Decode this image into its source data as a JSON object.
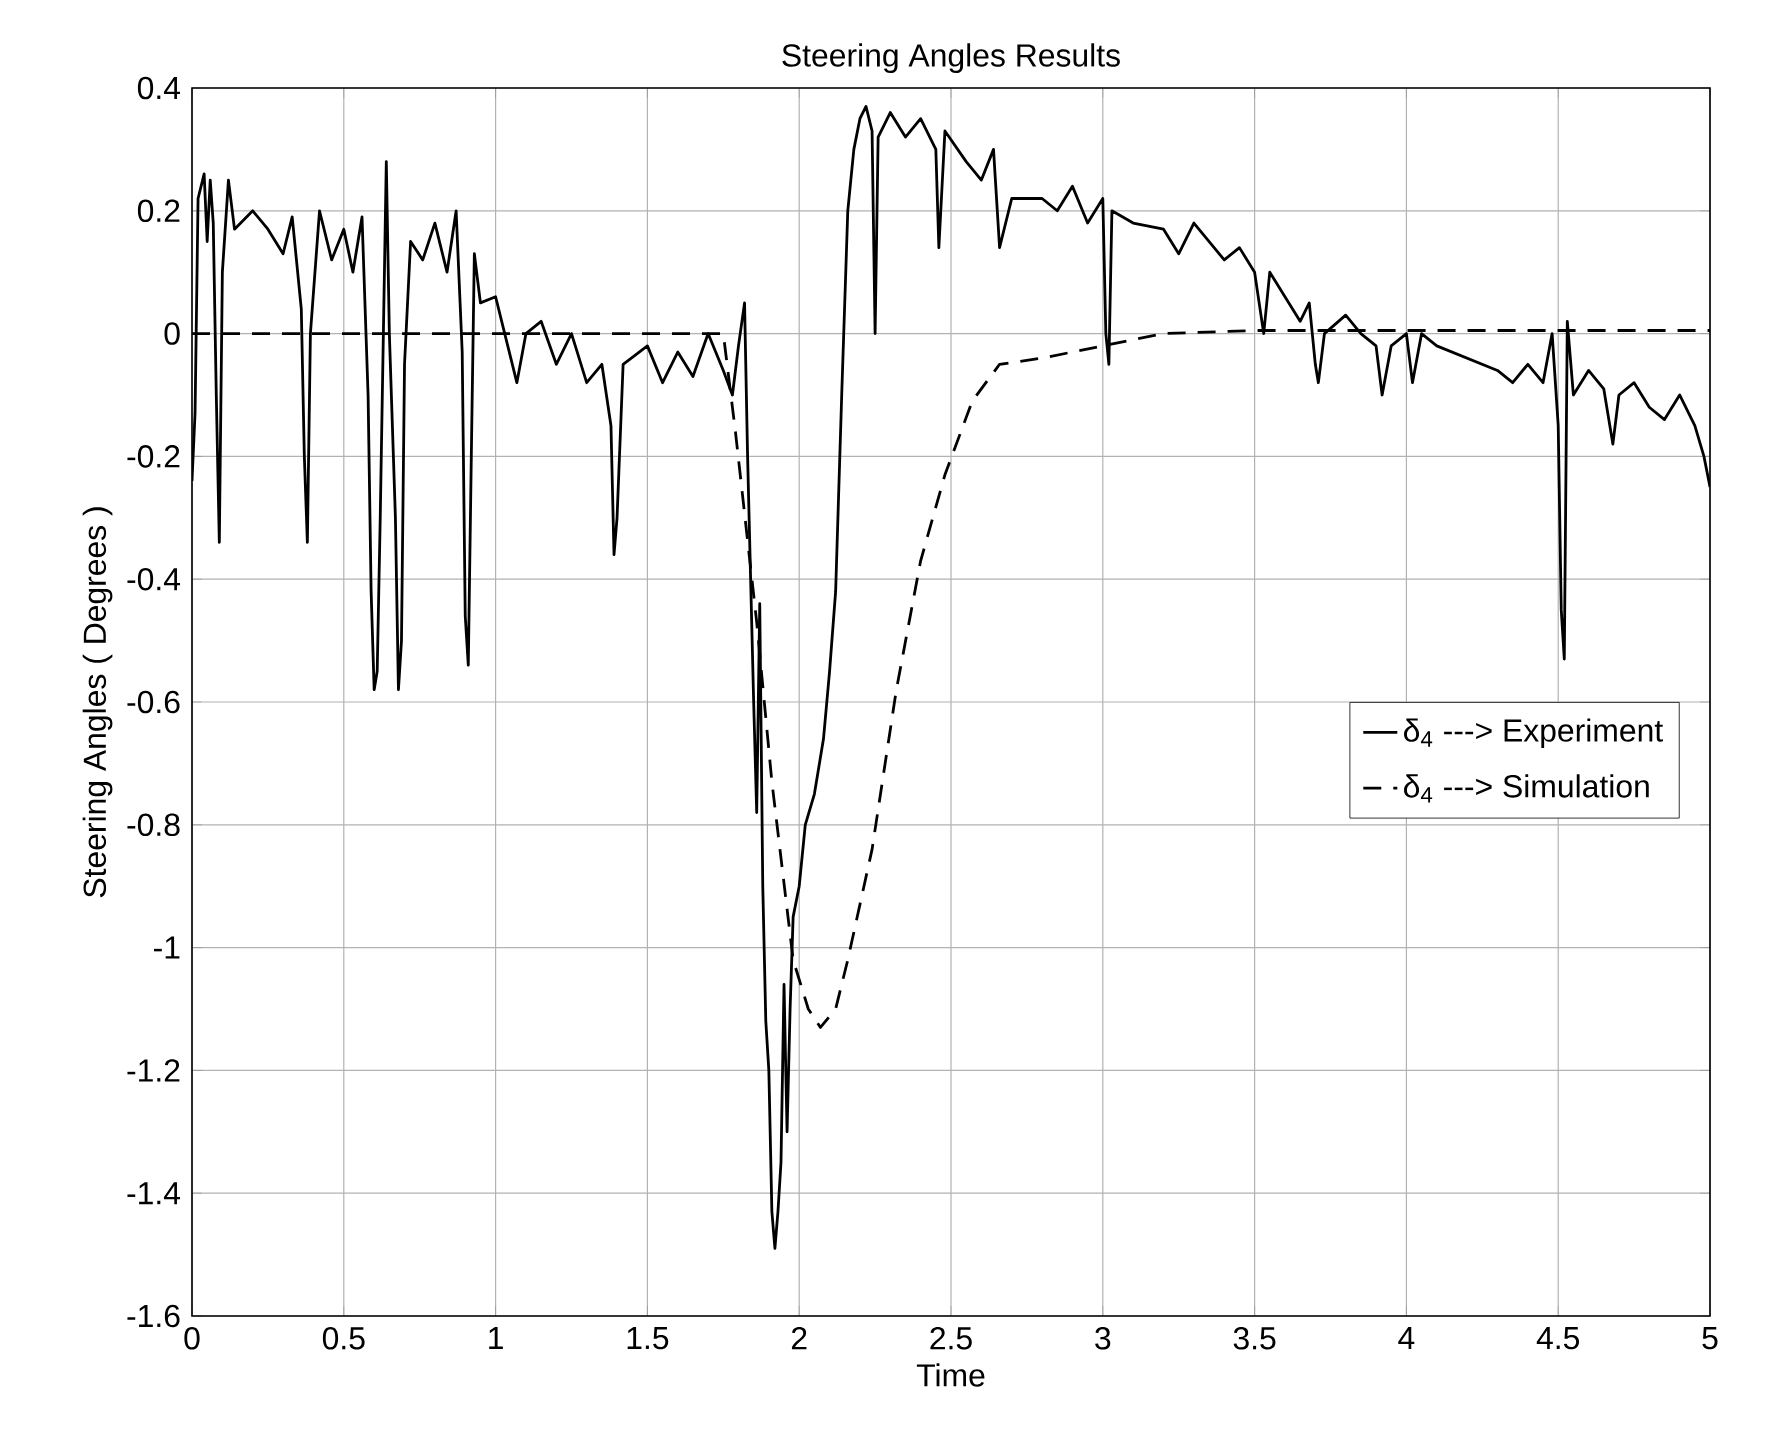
{
  "chart_data": {
    "type": "line",
    "title": "Steering Angles Results",
    "xlabel": "Time",
    "ylabel": "Steering Angles ( Degrees )",
    "xlim": [
      0,
      5
    ],
    "xticks": [
      0,
      0.5,
      1,
      1.5,
      2,
      2.5,
      3,
      3.5,
      4,
      4.5,
      5
    ],
    "ylim": [
      -1.6,
      0.4
    ],
    "yticks": [
      -1.6,
      -1.4,
      -1.2,
      -1,
      -0.8,
      -0.6,
      -0.4,
      -0.2,
      0,
      0.2,
      0.4
    ],
    "grid": true,
    "legend": "right",
    "series": [
      {
        "name": "δ$_{4}$ ---> Experiment",
        "color": "#000000",
        "line_style": "solid",
        "x": [
          0,
          0.01,
          0.02,
          0.04,
          0.05,
          0.06,
          0.07,
          0.08,
          0.09,
          0.1,
          0.12,
          0.14,
          0.2,
          0.25,
          0.3,
          0.33,
          0.36,
          0.37,
          0.38,
          0.39,
          0.42,
          0.46,
          0.5,
          0.53,
          0.56,
          0.58,
          0.59,
          0.6,
          0.61,
          0.62,
          0.64,
          0.65,
          0.67,
          0.68,
          0.69,
          0.7,
          0.72,
          0.76,
          0.8,
          0.84,
          0.87,
          0.89,
          0.9,
          0.91,
          0.92,
          0.93,
          0.95,
          1.0,
          1.03,
          1.07,
          1.1,
          1.15,
          1.2,
          1.25,
          1.3,
          1.35,
          1.38,
          1.39,
          1.4,
          1.42,
          1.5,
          1.55,
          1.6,
          1.65,
          1.7,
          1.75,
          1.78,
          1.8,
          1.82,
          1.83,
          1.84,
          1.85,
          1.86,
          1.87,
          1.88,
          1.89,
          1.9,
          1.91,
          1.92,
          1.93,
          1.94,
          1.95,
          1.96,
          1.97,
          1.98,
          2.0,
          2.02,
          2.05,
          2.08,
          2.1,
          2.12,
          2.14,
          2.16,
          2.18,
          2.2,
          2.22,
          2.24,
          2.25,
          2.26,
          2.3,
          2.35,
          2.4,
          2.45,
          2.46,
          2.48,
          2.55,
          2.6,
          2.64,
          2.66,
          2.7,
          2.8,
          2.85,
          2.9,
          2.95,
          3.0,
          3.01,
          3.02,
          3.03,
          3.1,
          3.2,
          3.25,
          3.3,
          3.35,
          3.4,
          3.45,
          3.5,
          3.53,
          3.55,
          3.6,
          3.65,
          3.68,
          3.7,
          3.71,
          3.73,
          3.8,
          3.85,
          3.9,
          3.92,
          3.95,
          4.0,
          4.02,
          4.05,
          4.1,
          4.2,
          4.3,
          4.35,
          4.4,
          4.45,
          4.48,
          4.5,
          4.51,
          4.52,
          4.53,
          4.55,
          4.6,
          4.65,
          4.68,
          4.7,
          4.75,
          4.8,
          4.85,
          4.9,
          4.95,
          4.98,
          5.0
        ],
        "values": [
          -0.24,
          -0.13,
          0.22,
          0.26,
          0.15,
          0.25,
          0.18,
          -0.1,
          -0.34,
          0.1,
          0.25,
          0.17,
          0.2,
          0.17,
          0.13,
          0.19,
          0.04,
          -0.2,
          -0.34,
          0.0,
          0.2,
          0.12,
          0.17,
          0.1,
          0.19,
          -0.1,
          -0.42,
          -0.58,
          -0.55,
          -0.3,
          0.28,
          0.0,
          -0.3,
          -0.58,
          -0.5,
          -0.05,
          0.15,
          0.12,
          0.18,
          0.1,
          0.2,
          -0.03,
          -0.46,
          -0.54,
          -0.2,
          0.13,
          0.05,
          0.06,
          0.0,
          -0.08,
          0.0,
          0.02,
          -0.05,
          0.0,
          -0.08,
          -0.05,
          -0.15,
          -0.36,
          -0.3,
          -0.05,
          -0.02,
          -0.08,
          -0.03,
          -0.07,
          0.0,
          -0.06,
          -0.1,
          -0.02,
          0.05,
          -0.2,
          -0.4,
          -0.6,
          -0.78,
          -0.44,
          -0.9,
          -1.12,
          -1.2,
          -1.43,
          -1.49,
          -1.43,
          -1.35,
          -1.06,
          -1.3,
          -1.1,
          -0.95,
          -0.9,
          -0.8,
          -0.75,
          -0.66,
          -0.55,
          -0.42,
          -0.1,
          0.2,
          0.3,
          0.35,
          0.37,
          0.33,
          0.0,
          0.32,
          0.36,
          0.32,
          0.35,
          0.3,
          0.14,
          0.33,
          0.28,
          0.25,
          0.3,
          0.14,
          0.22,
          0.22,
          0.2,
          0.24,
          0.18,
          0.22,
          0.0,
          -0.05,
          0.2,
          0.18,
          0.17,
          0.13,
          0.18,
          0.15,
          0.12,
          0.14,
          0.1,
          0.0,
          0.1,
          0.06,
          0.02,
          0.05,
          -0.05,
          -0.08,
          0.0,
          0.03,
          0.0,
          -0.02,
          -0.1,
          -0.02,
          0.0,
          -0.08,
          0.0,
          -0.02,
          -0.04,
          -0.06,
          -0.08,
          -0.05,
          -0.08,
          0.0,
          -0.15,
          -0.45,
          -0.53,
          0.02,
          -0.1,
          -0.06,
          -0.09,
          -0.18,
          -0.1,
          -0.08,
          -0.12,
          -0.14,
          -0.1,
          -0.15,
          -0.2,
          -0.25
        ]
      },
      {
        "name": "δ$_{4}$ ---> Simulation",
        "color": "#000000",
        "line_style": "dashed",
        "x": [
          0,
          1.6,
          1.75,
          1.79,
          1.86,
          1.91,
          1.98,
          2.03,
          2.07,
          2.12,
          2.16,
          2.24,
          2.32,
          2.4,
          2.48,
          2.57,
          2.66,
          2.8,
          3.0,
          3.2,
          3.5,
          4.0,
          5.0
        ],
        "values": [
          0,
          0,
          0,
          -0.16,
          -0.47,
          -0.73,
          -1.02,
          -1.1,
          -1.13,
          -1.1,
          -1.02,
          -0.84,
          -0.58,
          -0.37,
          -0.23,
          -0.11,
          -0.05,
          -0.04,
          -0.02,
          0.0,
          0.005,
          0.005,
          0.005
        ]
      }
    ]
  }
}
